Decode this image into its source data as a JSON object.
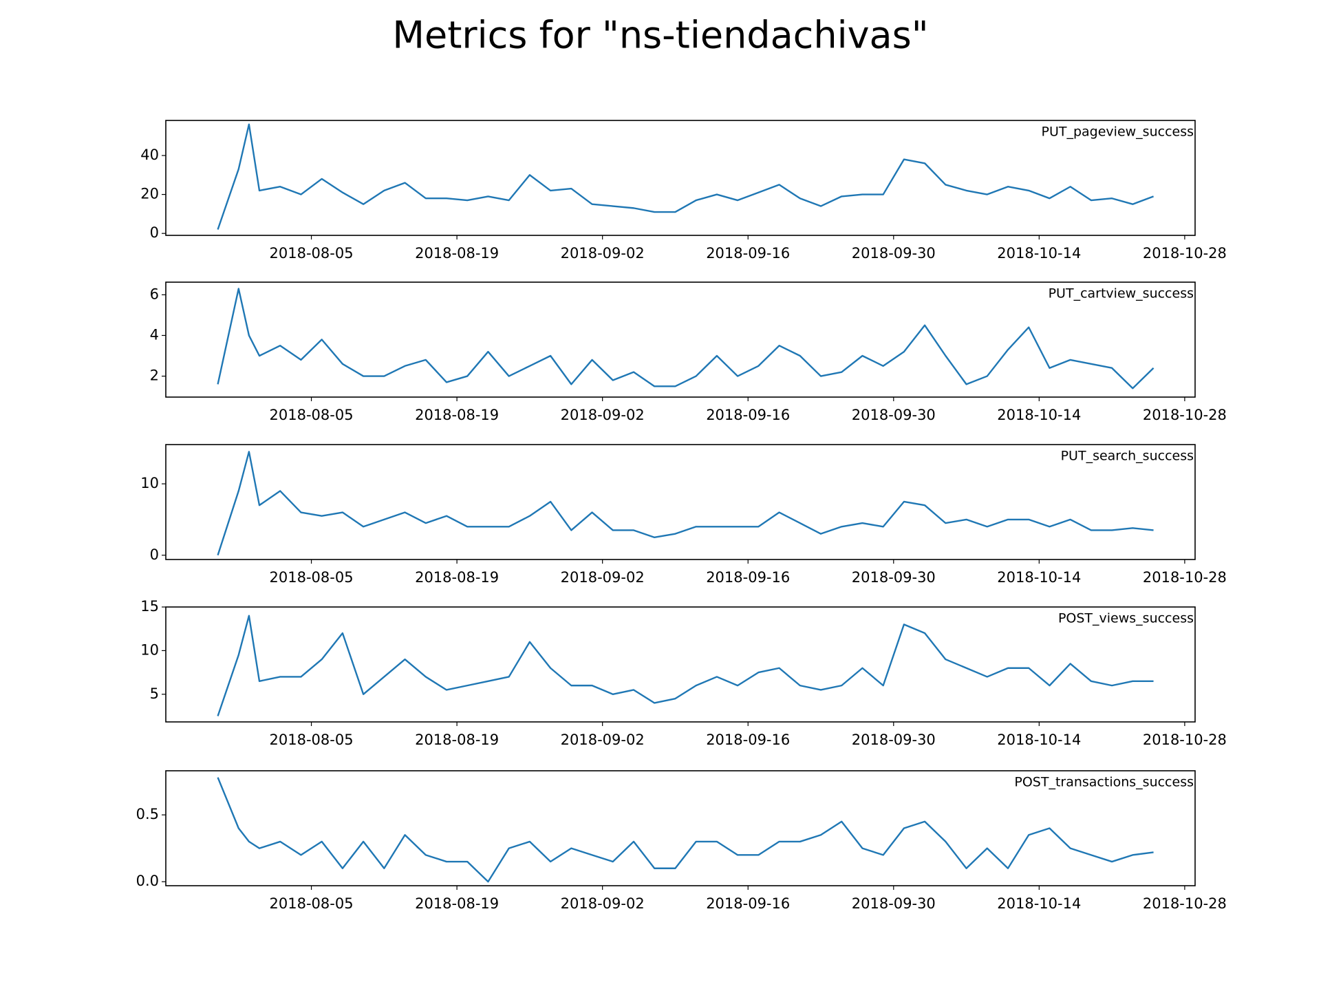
{
  "title": "Metrics for \"ns-tiendachivas\"",
  "chart_data": [
    {
      "type": "line",
      "x": [
        "2018-07-27",
        "2018-07-29",
        "2018-07-30",
        "2018-07-31",
        "2018-08-02",
        "2018-08-04",
        "2018-08-06",
        "2018-08-08",
        "2018-08-10",
        "2018-08-12",
        "2018-08-14",
        "2018-08-16",
        "2018-08-18",
        "2018-08-20",
        "2018-08-22",
        "2018-08-24",
        "2018-08-26",
        "2018-08-28",
        "2018-08-30",
        "2018-09-01",
        "2018-09-03",
        "2018-09-05",
        "2018-09-07",
        "2018-09-09",
        "2018-09-11",
        "2018-09-13",
        "2018-09-15",
        "2018-09-17",
        "2018-09-19",
        "2018-09-21",
        "2018-09-23",
        "2018-09-25",
        "2018-09-27",
        "2018-09-29",
        "2018-10-01",
        "2018-10-03",
        "2018-10-05",
        "2018-10-07",
        "2018-10-09",
        "2018-10-11",
        "2018-10-13",
        "2018-10-15",
        "2018-10-17",
        "2018-10-19",
        "2018-10-21",
        "2018-10-23",
        "2018-10-25"
      ],
      "series": [
        {
          "name": "PUT_pageview_success",
          "color": "#1f77b4",
          "values": [
            2,
            33,
            56,
            22,
            24,
            20,
            28,
            21,
            15,
            22,
            26,
            18,
            18,
            17,
            19,
            17,
            30,
            22,
            23,
            15,
            14,
            13,
            11,
            11,
            17,
            20,
            17,
            21,
            25,
            18,
            14,
            19,
            20,
            20,
            38,
            36,
            25,
            22,
            20,
            24,
            22,
            18,
            24,
            17,
            18,
            15,
            19
          ]
        }
      ],
      "xlim": [
        "2018-07-22",
        "2018-10-29"
      ],
      "xticks": [
        "2018-08-05",
        "2018-08-19",
        "2018-09-02",
        "2018-09-16",
        "2018-09-30",
        "2018-10-14",
        "2018-10-28"
      ],
      "ylim": [
        -1,
        58
      ],
      "yticks": [
        0,
        20,
        40
      ]
    },
    {
      "type": "line",
      "x": [
        "2018-07-27",
        "2018-07-29",
        "2018-07-30",
        "2018-07-31",
        "2018-08-02",
        "2018-08-04",
        "2018-08-06",
        "2018-08-08",
        "2018-08-10",
        "2018-08-12",
        "2018-08-14",
        "2018-08-16",
        "2018-08-18",
        "2018-08-20",
        "2018-08-22",
        "2018-08-24",
        "2018-08-26",
        "2018-08-28",
        "2018-08-30",
        "2018-09-01",
        "2018-09-03",
        "2018-09-05",
        "2018-09-07",
        "2018-09-09",
        "2018-09-11",
        "2018-09-13",
        "2018-09-15",
        "2018-09-17",
        "2018-09-19",
        "2018-09-21",
        "2018-09-23",
        "2018-09-25",
        "2018-09-27",
        "2018-09-29",
        "2018-10-01",
        "2018-10-03",
        "2018-10-05",
        "2018-10-07",
        "2018-10-09",
        "2018-10-11",
        "2018-10-13",
        "2018-10-15",
        "2018-10-17",
        "2018-10-19",
        "2018-10-21",
        "2018-10-23",
        "2018-10-25"
      ],
      "series": [
        {
          "name": "PUT_cartview_success",
          "color": "#1f77b4",
          "values": [
            1.6,
            6.3,
            4.0,
            3.0,
            3.5,
            2.8,
            3.8,
            2.6,
            2.0,
            2.0,
            2.5,
            2.8,
            1.7,
            2.0,
            3.2,
            2.0,
            2.5,
            3.0,
            1.6,
            2.8,
            1.8,
            2.2,
            1.5,
            1.5,
            2.0,
            3.0,
            2.0,
            2.5,
            3.5,
            3.0,
            2.0,
            2.2,
            3.0,
            2.5,
            3.2,
            4.5,
            3.0,
            1.6,
            2.0,
            3.3,
            4.4,
            2.4,
            2.8,
            2.6,
            2.4,
            1.4,
            2.4
          ]
        }
      ],
      "xlim": [
        "2018-07-22",
        "2018-10-29"
      ],
      "xticks": [
        "2018-08-05",
        "2018-08-19",
        "2018-09-02",
        "2018-09-16",
        "2018-09-30",
        "2018-10-14",
        "2018-10-28"
      ],
      "ylim": [
        0.97,
        6.62
      ],
      "yticks": [
        2,
        4,
        6
      ]
    },
    {
      "type": "line",
      "x": [
        "2018-07-27",
        "2018-07-29",
        "2018-07-30",
        "2018-07-31",
        "2018-08-02",
        "2018-08-04",
        "2018-08-06",
        "2018-08-08",
        "2018-08-10",
        "2018-08-12",
        "2018-08-14",
        "2018-08-16",
        "2018-08-18",
        "2018-08-20",
        "2018-08-22",
        "2018-08-24",
        "2018-08-26",
        "2018-08-28",
        "2018-08-30",
        "2018-09-01",
        "2018-09-03",
        "2018-09-05",
        "2018-09-07",
        "2018-09-09",
        "2018-09-11",
        "2018-09-13",
        "2018-09-15",
        "2018-09-17",
        "2018-09-19",
        "2018-09-21",
        "2018-09-23",
        "2018-09-25",
        "2018-09-27",
        "2018-09-29",
        "2018-10-01",
        "2018-10-03",
        "2018-10-05",
        "2018-10-07",
        "2018-10-09",
        "2018-10-11",
        "2018-10-13",
        "2018-10-15",
        "2018-10-17",
        "2018-10-19",
        "2018-10-21",
        "2018-10-23",
        "2018-10-25"
      ],
      "series": [
        {
          "name": "PUT_search_success",
          "color": "#1f77b4",
          "values": [
            0,
            9,
            14.5,
            7,
            9,
            6,
            5.5,
            6,
            4,
            5,
            6,
            4.5,
            5.5,
            4,
            4,
            4,
            5.5,
            7.5,
            3.5,
            6,
            3.5,
            3.5,
            2.5,
            3,
            4,
            4,
            4,
            4,
            6,
            4.5,
            3,
            4,
            4.5,
            4,
            7.5,
            7,
            4.5,
            5,
            4,
            5,
            5,
            4,
            5,
            3.5,
            3.5,
            3.8,
            3.5
          ]
        }
      ],
      "xlim": [
        "2018-07-22",
        "2018-10-29"
      ],
      "xticks": [
        "2018-08-05",
        "2018-08-19",
        "2018-09-02",
        "2018-09-16",
        "2018-09-30",
        "2018-10-14",
        "2018-10-28"
      ],
      "ylim": [
        -0.6,
        15.5
      ],
      "yticks": [
        0,
        10
      ]
    },
    {
      "type": "line",
      "x": [
        "2018-07-27",
        "2018-07-29",
        "2018-07-30",
        "2018-07-31",
        "2018-08-02",
        "2018-08-04",
        "2018-08-06",
        "2018-08-08",
        "2018-08-10",
        "2018-08-12",
        "2018-08-14",
        "2018-08-16",
        "2018-08-18",
        "2018-08-20",
        "2018-08-22",
        "2018-08-24",
        "2018-08-26",
        "2018-08-28",
        "2018-08-30",
        "2018-09-01",
        "2018-09-03",
        "2018-09-05",
        "2018-09-07",
        "2018-09-09",
        "2018-09-11",
        "2018-09-13",
        "2018-09-15",
        "2018-09-17",
        "2018-09-19",
        "2018-09-21",
        "2018-09-23",
        "2018-09-25",
        "2018-09-27",
        "2018-09-29",
        "2018-10-01",
        "2018-10-03",
        "2018-10-05",
        "2018-10-07",
        "2018-10-09",
        "2018-10-11",
        "2018-10-13",
        "2018-10-15",
        "2018-10-17",
        "2018-10-19",
        "2018-10-21",
        "2018-10-23",
        "2018-10-25"
      ],
      "series": [
        {
          "name": "POST_views_success",
          "color": "#1f77b4",
          "values": [
            2.5,
            9.5,
            14,
            6.5,
            7,
            7,
            9,
            12,
            5,
            7,
            9,
            7,
            5.5,
            6,
            6.5,
            7,
            11,
            8,
            6,
            6,
            5,
            5.5,
            4,
            4.5,
            6,
            7,
            6,
            7.5,
            8,
            6,
            5.5,
            6,
            8,
            6,
            13,
            12,
            9,
            8,
            7,
            8,
            8,
            6,
            8.5,
            6.5,
            6,
            6.5,
            6.5
          ]
        }
      ],
      "xlim": [
        "2018-07-22",
        "2018-10-29"
      ],
      "xticks": [
        "2018-08-05",
        "2018-08-19",
        "2018-09-02",
        "2018-09-16",
        "2018-09-30",
        "2018-10-14",
        "2018-10-28"
      ],
      "ylim": [
        1.83,
        15
      ],
      "yticks": [
        5,
        10,
        15
      ]
    },
    {
      "type": "line",
      "x": [
        "2018-07-27",
        "2018-07-29",
        "2018-07-30",
        "2018-07-31",
        "2018-08-02",
        "2018-08-04",
        "2018-08-06",
        "2018-08-08",
        "2018-08-10",
        "2018-08-12",
        "2018-08-14",
        "2018-08-16",
        "2018-08-18",
        "2018-08-20",
        "2018-08-22",
        "2018-08-24",
        "2018-08-26",
        "2018-08-28",
        "2018-08-30",
        "2018-09-01",
        "2018-09-03",
        "2018-09-05",
        "2018-09-07",
        "2018-09-09",
        "2018-09-11",
        "2018-09-13",
        "2018-09-15",
        "2018-09-17",
        "2018-09-19",
        "2018-09-21",
        "2018-09-23",
        "2018-09-25",
        "2018-09-27",
        "2018-09-29",
        "2018-10-01",
        "2018-10-03",
        "2018-10-05",
        "2018-10-07",
        "2018-10-09",
        "2018-10-11",
        "2018-10-13",
        "2018-10-15",
        "2018-10-17",
        "2018-10-19",
        "2018-10-21",
        "2018-10-23",
        "2018-10-25"
      ],
      "series": [
        {
          "name": "POST_transactions_success",
          "color": "#1f77b4",
          "values": [
            0.78,
            0.4,
            0.3,
            0.25,
            0.3,
            0.2,
            0.3,
            0.1,
            0.3,
            0.1,
            0.35,
            0.2,
            0.15,
            0.15,
            0.0,
            0.25,
            0.3,
            0.15,
            0.25,
            0.2,
            0.15,
            0.3,
            0.1,
            0.1,
            0.3,
            0.3,
            0.2,
            0.2,
            0.3,
            0.3,
            0.35,
            0.45,
            0.25,
            0.2,
            0.4,
            0.45,
            0.3,
            0.1,
            0.25,
            0.1,
            0.35,
            0.4,
            0.25,
            0.2,
            0.15,
            0.2,
            0.22
          ]
        }
      ],
      "xlim": [
        "2018-07-22",
        "2018-10-29"
      ],
      "xticks": [
        "2018-08-05",
        "2018-08-19",
        "2018-09-02",
        "2018-09-16",
        "2018-09-30",
        "2018-10-14",
        "2018-10-28"
      ],
      "ylim": [
        -0.03,
        0.83
      ],
      "yticks": [
        {
          "value": 0,
          "label": "0.0"
        },
        0.5
      ]
    }
  ]
}
